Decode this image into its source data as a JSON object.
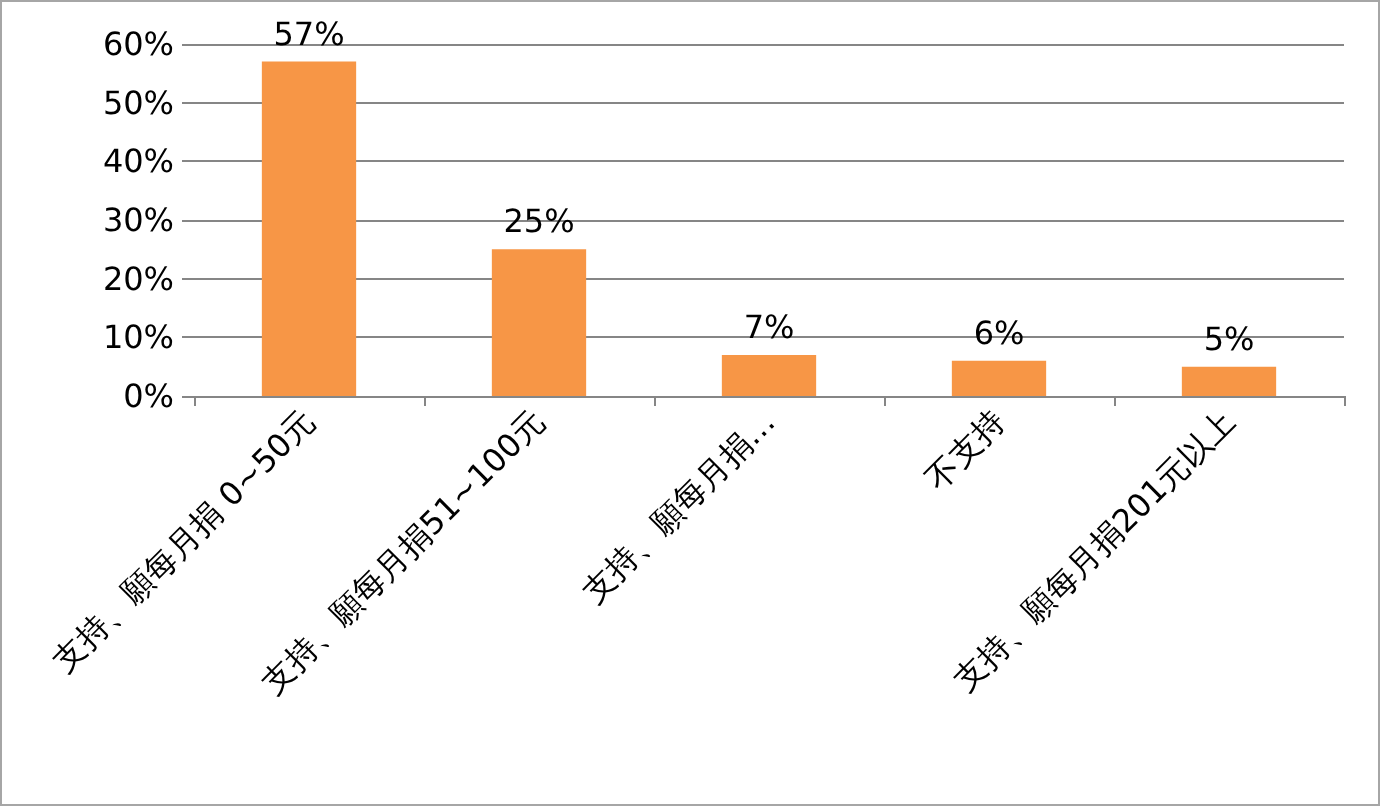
{
  "chart_data": {
    "type": "bar",
    "categories": [
      "支持、願每月捐 0~50元",
      "支持、願每月捐51~100元",
      "支持、願每月捐…",
      "不支持",
      "支持、願每月捐201元以上"
    ],
    "values": [
      57,
      25,
      7,
      6,
      5
    ],
    "value_labels": [
      "57%",
      "25%",
      "7%",
      "6%",
      "5%"
    ],
    "color": "#f79646",
    "ylim": [
      0,
      60
    ],
    "yticks": [
      {
        "value": 0,
        "label": "0%"
      },
      {
        "value": 10,
        "label": "10%"
      },
      {
        "value": 20,
        "label": "20%"
      },
      {
        "value": 30,
        "label": "30%"
      },
      {
        "value": 40,
        "label": "40%"
      },
      {
        "value": 50,
        "label": "50%"
      },
      {
        "value": 60,
        "label": "60%"
      }
    ],
    "grid": "y"
  }
}
